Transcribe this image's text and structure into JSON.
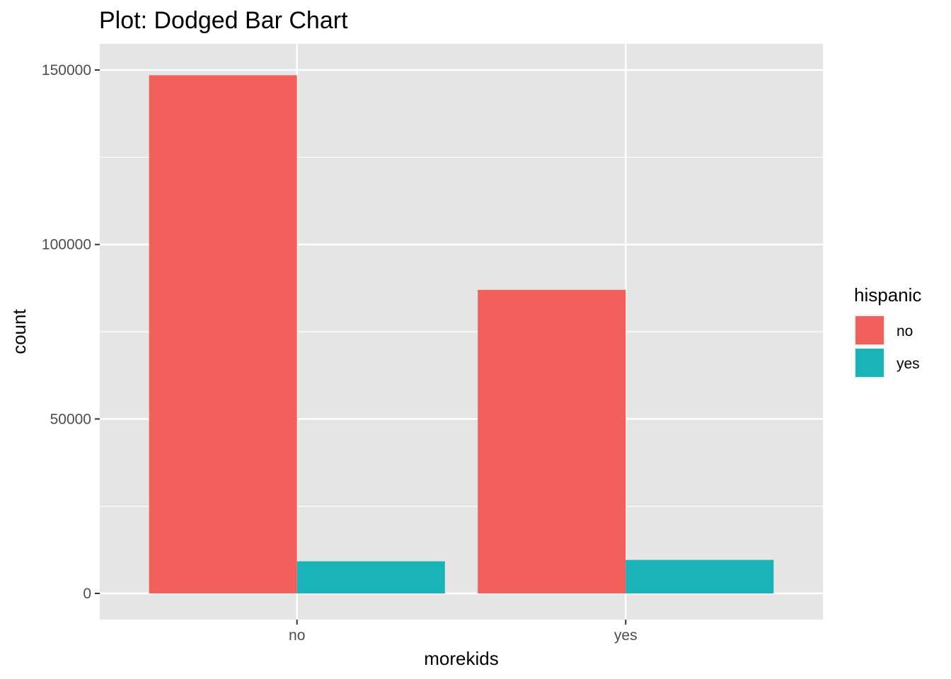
{
  "chart_data": {
    "type": "bar",
    "title": "Plot: Dodged Bar Chart",
    "xlabel": "morekids",
    "ylabel": "count",
    "categories": [
      "no",
      "yes"
    ],
    "series": [
      {
        "name": "no",
        "values": [
          148500,
          87000
        ],
        "color": "#F2605C"
      },
      {
        "name": "yes",
        "values": [
          9200,
          9600
        ],
        "color": "#1AB3B8"
      }
    ],
    "ylim": [
      -7500,
      157500
    ],
    "yticks": [
      0,
      50000,
      100000,
      150000
    ],
    "yticks_minor": [
      25000,
      75000,
      125000
    ],
    "ytick_labels": [
      "0",
      "50000",
      "100000",
      "150000"
    ],
    "legend": {
      "title": "hispanic",
      "placement": "right"
    },
    "grid": true,
    "panel_color": "#E5E5E5",
    "grid_color": "#FFFFFF"
  }
}
